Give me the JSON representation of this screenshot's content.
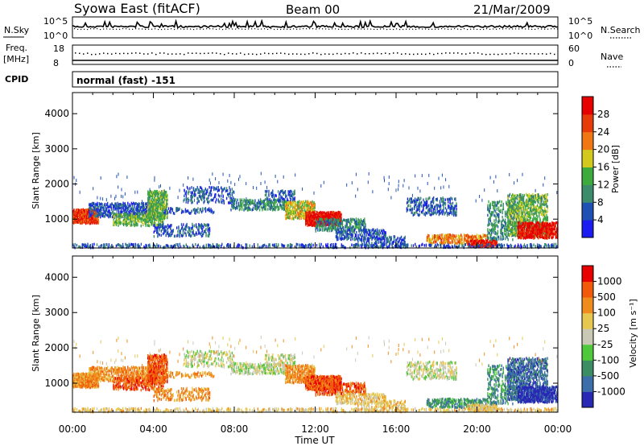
{
  "header": {
    "station": "Syowa East (fitACF)",
    "beam": "Beam 00",
    "date": "21/Mar/2009"
  },
  "noise_panel": {
    "left_label": "N.Sky",
    "right_label": "N.Search",
    "left_ticks": [
      "10^5",
      "10^0"
    ],
    "right_ticks": [
      "10^5",
      "10^0"
    ]
  },
  "freq_panel": {
    "left_label_top": "Freq.",
    "left_label_bottom": "[MHz]",
    "right_label": "Nave",
    "left_ticks": [
      "18",
      "8"
    ],
    "right_ticks": [
      "60",
      "0"
    ]
  },
  "cpid": {
    "label": "CPID",
    "value": "normal (fast) -151"
  },
  "chart_data": [
    {
      "type": "heatmap",
      "quantity": "Power",
      "ylabel": "Slant Range [km]",
      "ylim": [
        180,
        4600
      ],
      "yticks": [
        1000,
        2000,
        3000,
        4000
      ],
      "colorbar": {
        "label": "Power [dB]",
        "ticks": [
          4,
          8,
          12,
          16,
          20,
          24,
          28
        ],
        "range": [
          0,
          32
        ]
      },
      "x_hours": [
        0,
        24
      ]
    },
    {
      "type": "heatmap",
      "quantity": "Velocity",
      "ylabel": "Slant Range [km]",
      "ylim": [
        180,
        4600
      ],
      "yticks": [
        1000,
        2000,
        3000,
        4000
      ],
      "colorbar": {
        "label": "Velocity [m s⁻¹]",
        "ticks": [
          1000,
          500,
          100,
          25,
          -25,
          -100,
          -500,
          -1000
        ]
      },
      "x_hours": [
        0,
        24
      ]
    }
  ],
  "time_axis": {
    "ticks": [
      "00:00",
      "04:00",
      "08:00",
      "12:00",
      "16:00",
      "20:00",
      "00:00"
    ],
    "xlabel": "Time UT"
  },
  "colors": {
    "power": [
      "#1c1cf0",
      "#1f50b4",
      "#3c8c6c",
      "#3caa3c",
      "#d2c81e",
      "#f07814",
      "#e63c0a",
      "#e60000"
    ],
    "velocity": [
      "#2828b4",
      "#3c6eaa",
      "#3c8c64",
      "#50c83c",
      "#c8c8b4",
      "#e6c850",
      "#f08c1e",
      "#f05a0a",
      "#e60000"
    ]
  }
}
